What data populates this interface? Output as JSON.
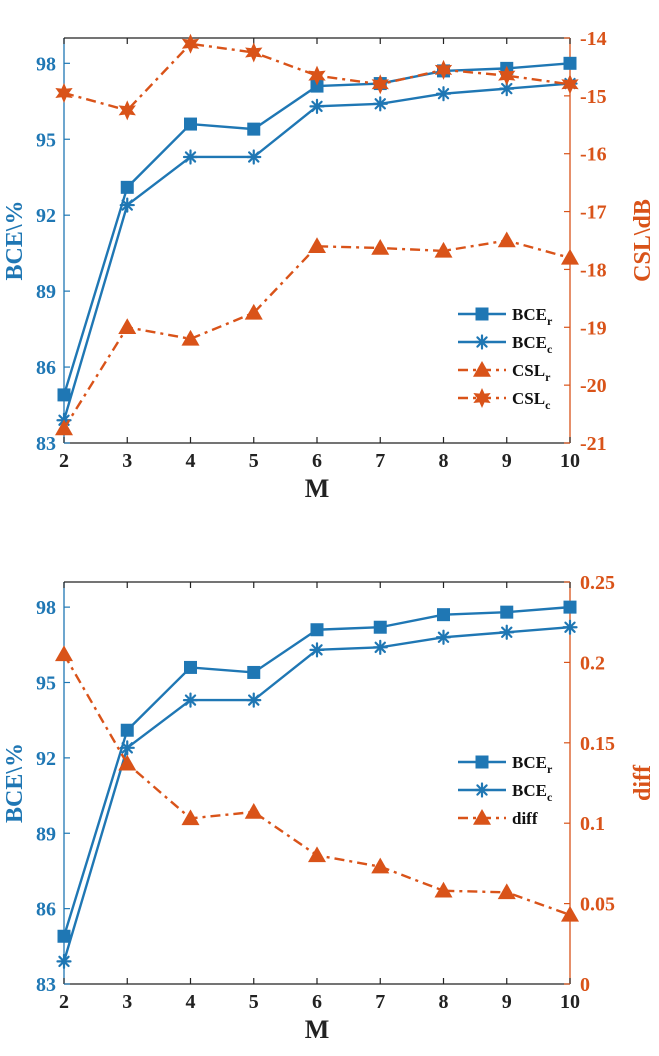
{
  "colors": {
    "blue": "#1f77b4",
    "orange": "#d95319",
    "axis": "#222222"
  },
  "chart_data": [
    {
      "type": "line",
      "x": [
        2,
        3,
        4,
        5,
        6,
        7,
        8,
        9,
        10
      ],
      "xlabel": "M",
      "x_ticks": [
        "2",
        "3",
        "4",
        "5",
        "6",
        "7",
        "8",
        "9",
        "10"
      ],
      "ylabel_left": "BCE\\%",
      "ylim_left": [
        83,
        99
      ],
      "yticks_left": [
        83,
        86,
        89,
        92,
        95,
        98
      ],
      "ytick_labels_left": [
        "83",
        "86",
        "89",
        "92",
        "95",
        "98"
      ],
      "ylabel_right": "CSL\\dB",
      "ylim_right": [
        -21,
        -14
      ],
      "yticks_right": [
        -21,
        -20,
        -19,
        -18,
        -17,
        -16,
        -15,
        -14
      ],
      "ytick_labels_right": [
        "-21",
        "-20",
        "-19",
        "-18",
        "-17",
        "-16",
        "-15",
        "-14"
      ],
      "legend_position": "right-middle",
      "series": [
        {
          "name": "BCE",
          "sub": "r",
          "axis": "left",
          "marker": "square",
          "style": "solid",
          "color": "#1f77b4",
          "values": [
            84.9,
            93.1,
            95.6,
            95.4,
            97.1,
            97.2,
            97.7,
            97.8,
            98.0
          ]
        },
        {
          "name": "BCE",
          "sub": "c",
          "axis": "left",
          "marker": "asterisk",
          "style": "solid",
          "color": "#1f77b4",
          "values": [
            83.9,
            92.4,
            94.3,
            94.3,
            96.3,
            96.4,
            96.8,
            97.0,
            97.2
          ]
        },
        {
          "name": "CSL",
          "sub": "r",
          "axis": "right",
          "marker": "triangle",
          "style": "dashdot",
          "color": "#d95319",
          "values": [
            -20.75,
            -19.0,
            -19.2,
            -18.75,
            -17.6,
            -17.63,
            -17.68,
            -17.5,
            -17.8
          ]
        },
        {
          "name": "CSL",
          "sub": "c",
          "axis": "right",
          "marker": "hexagram",
          "style": "dashdot",
          "color": "#d95319",
          "values": [
            -14.95,
            -15.25,
            -14.1,
            -14.25,
            -14.65,
            -14.8,
            -14.55,
            -14.65,
            -14.8
          ]
        }
      ]
    },
    {
      "type": "line",
      "x": [
        2,
        3,
        4,
        5,
        6,
        7,
        8,
        9,
        10
      ],
      "xlabel": "M",
      "x_ticks": [
        "2",
        "3",
        "4",
        "5",
        "6",
        "7",
        "8",
        "9",
        "10"
      ],
      "ylabel_left": "BCE\\%",
      "ylim_left": [
        83,
        99
      ],
      "yticks_left": [
        83,
        86,
        89,
        92,
        95,
        98
      ],
      "ytick_labels_left": [
        "83",
        "86",
        "89",
        "92",
        "95",
        "98"
      ],
      "ylabel_right": "diff",
      "ylim_right": [
        0,
        0.25
      ],
      "yticks_right": [
        0,
        0.05,
        0.1,
        0.15,
        0.2,
        0.25
      ],
      "ytick_labels_right": [
        "0",
        "0.05",
        "0.1",
        "0.15",
        "0.2",
        "0.25"
      ],
      "legend_position": "right-middle",
      "series": [
        {
          "name": "BCE",
          "sub": "r",
          "axis": "left",
          "marker": "square",
          "style": "solid",
          "color": "#1f77b4",
          "values": [
            84.9,
            93.1,
            95.6,
            95.4,
            97.1,
            97.2,
            97.7,
            97.8,
            98.0
          ]
        },
        {
          "name": "BCE",
          "sub": "c",
          "axis": "left",
          "marker": "asterisk",
          "style": "solid",
          "color": "#1f77b4",
          "values": [
            83.9,
            92.4,
            94.3,
            94.3,
            96.3,
            96.4,
            96.8,
            97.0,
            97.2
          ]
        },
        {
          "name": "diff",
          "sub": "",
          "axis": "right",
          "marker": "triangle",
          "style": "dashdot",
          "color": "#d95319",
          "values": [
            0.205,
            0.137,
            0.103,
            0.107,
            0.08,
            0.073,
            0.058,
            0.057,
            0.043
          ]
        }
      ]
    }
  ]
}
